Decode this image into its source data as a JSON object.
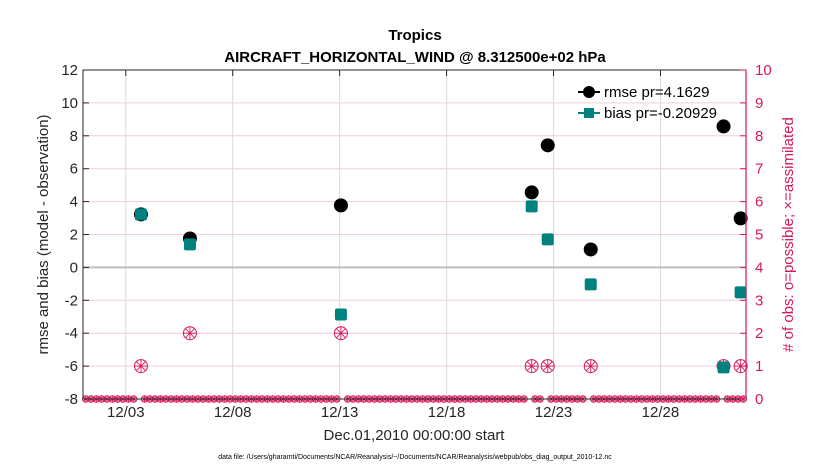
{
  "chart_data": {
    "type": "scatter",
    "title": "Tropics",
    "subtitle": "AIRCRAFT_HORIZONTAL_WIND @ 8.312500e+02 hPa",
    "xlabel": "Dec.01,2010 00:00:00 start",
    "ylabel": "rmse and bias (model - observation)",
    "ylabel_right": "# of obs: o=possible; ×=assimilated",
    "footnote": "data file: /Users/gharamti/Documents/NCAR/Reanalysis/~/Documents/NCAR/Reanalysis/webpub/obs_diag_output_2010-12.nc",
    "x_unit": "days since Dec.01,2010 00:00:00",
    "xlim": [
      0,
      31
    ],
    "x_ticks": [
      {
        "value": 2,
        "label": "12/03"
      },
      {
        "value": 7,
        "label": "12/08"
      },
      {
        "value": 12,
        "label": "12/13"
      },
      {
        "value": 17,
        "label": "12/18"
      },
      {
        "value": 22,
        "label": "12/23"
      },
      {
        "value": 27,
        "label": "12/28"
      }
    ],
    "ylim": [
      -8,
      12
    ],
    "y_ticks": [
      -8,
      -6,
      -4,
      -2,
      0,
      2,
      4,
      6,
      8,
      10,
      12
    ],
    "ylim_right": [
      0,
      10
    ],
    "y_ticks_right": [
      0,
      1,
      2,
      3,
      4,
      5,
      6,
      7,
      8,
      9,
      10
    ],
    "grid": true,
    "zero_line": true,
    "legend_position": "top-right",
    "colors": {
      "rmse": "#000000",
      "bias": "#00807F",
      "obs": "#D6185E",
      "zero_line": "#BFBFBF",
      "x_grid": "#D9D9D9",
      "y_grid": "#F4CCDB"
    },
    "series": [
      {
        "name": "rmse pr=4.1629",
        "key": "rmse",
        "marker": "circle",
        "x": [
          2.71,
          5.0,
          12.06,
          20.98,
          21.73,
          23.74,
          29.95,
          30.75
        ],
        "values": [
          3.22,
          1.76,
          3.77,
          4.56,
          7.42,
          1.09,
          8.57,
          2.98
        ]
      },
      {
        "name": "bias pr=-0.20929",
        "key": "bias",
        "marker": "square",
        "x": [
          2.71,
          5.0,
          12.06,
          20.98,
          21.73,
          23.74,
          29.95,
          30.75
        ],
        "values": [
          3.22,
          1.4,
          -2.86,
          3.71,
          1.7,
          -1.03,
          -6.08,
          -1.52
        ]
      }
    ],
    "obs_counts": {
      "axis": "right",
      "marker": "circle-asterisk",
      "interval_days": 0.25,
      "first_time": 0.125,
      "count": 124,
      "default_value": 0,
      "nonzero": [
        {
          "x": 2.71,
          "possible": 1,
          "assimilated": 1
        },
        {
          "x": 5.0,
          "possible": 2,
          "assimilated": 2
        },
        {
          "x": 12.06,
          "possible": 2,
          "assimilated": 2
        },
        {
          "x": 20.98,
          "possible": 1,
          "assimilated": 1
        },
        {
          "x": 21.73,
          "possible": 1,
          "assimilated": 1
        },
        {
          "x": 23.74,
          "possible": 1,
          "assimilated": 1
        },
        {
          "x": 29.95,
          "possible": 1,
          "assimilated": 1
        },
        {
          "x": 30.75,
          "possible": 1,
          "assimilated": 1
        }
      ]
    }
  }
}
